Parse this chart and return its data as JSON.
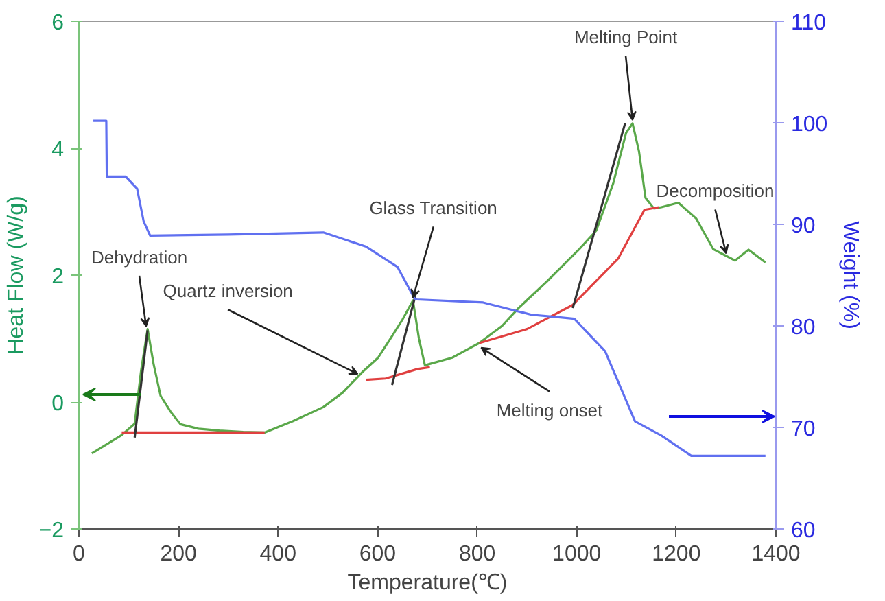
{
  "chart_data": {
    "type": "line",
    "xlabel": "Temperature(℃)",
    "ylabel": "Heat Flow (W/g)",
    "y2label": "Weight (%)",
    "xlim": [
      0,
      1400
    ],
    "xticks": [
      0,
      200,
      400,
      600,
      800,
      1000,
      1200,
      1400
    ],
    "ylim": [
      -2,
      6
    ],
    "yticks": [
      -2,
      0,
      2,
      4,
      6
    ],
    "y2lim": [
      60,
      110
    ],
    "y2ticks": [
      60,
      70,
      80,
      90,
      100,
      110
    ],
    "grid": false,
    "series": [
      {
        "color": "#5aa84a",
        "x": [
          26,
          86,
          112,
          125,
          138,
          150,
          164,
          184,
          204,
          240,
          282,
          330,
          373,
          430,
          491,
          530,
          569,
          601,
          629,
          650,
          671,
          683,
          695,
          750,
          804,
          850,
          883,
          940,
          1005,
          1039,
          1073,
          1099,
          1112,
          1125,
          1138,
          1155,
          1170,
          1204,
          1240,
          1274,
          1318,
          1345,
          1379
        ],
        "values": [
          -0.81,
          -0.52,
          -0.34,
          0.5,
          1.15,
          0.6,
          0.1,
          -0.15,
          -0.35,
          -0.42,
          -0.45,
          -0.47,
          -0.48,
          -0.3,
          -0.08,
          0.15,
          0.47,
          0.7,
          1.04,
          1.3,
          1.6,
          1.0,
          0.58,
          0.7,
          0.93,
          1.2,
          1.48,
          1.9,
          2.41,
          2.7,
          3.44,
          4.24,
          4.39,
          3.95,
          3.22,
          3.05,
          3.07,
          3.14,
          2.89,
          2.41,
          2.23,
          2.4,
          2.2
        ]
      },
      {
        "color": "#e04040",
        "x": [
          86,
          373
        ],
        "values": [
          -0.48,
          -0.48
        ]
      },
      {
        "color": "#e04040",
        "x": [
          576,
          616,
          650,
          680,
          705
        ],
        "values": [
          0.35,
          0.37,
          0.45,
          0.52,
          0.55
        ]
      },
      {
        "color": "#e04040",
        "x": [
          804,
          900,
          992,
          1083,
          1136,
          1165
        ],
        "values": [
          0.93,
          1.15,
          1.53,
          2.26,
          3.03,
          3.07
        ]
      },
      {
        "color": "#333333",
        "x": [
          112,
          138
        ],
        "values": [
          -0.56,
          1.13
        ]
      },
      {
        "color": "#333333",
        "x": [
          629,
          676
        ],
        "values": [
          0.27,
          1.68
        ]
      },
      {
        "color": "#333333",
        "x": [
          992,
          1097
        ],
        "values": [
          1.48,
          4.39
        ]
      },
      {
        "color": "#6070f0",
        "axis": "y2",
        "x": [
          29,
          55,
          56,
          94,
          117,
          130,
          143,
          300,
          491,
          577,
          640,
          674,
          679,
          812,
          909,
          953,
          995,
          1057,
          1117,
          1170,
          1230,
          1379
        ],
        "values": [
          100.2,
          100.2,
          94.7,
          94.7,
          93.5,
          90.3,
          88.9,
          89.0,
          89.2,
          87.8,
          85.8,
          82.7,
          82.6,
          82.3,
          81.1,
          80.9,
          80.7,
          77.5,
          70.6,
          69.2,
          67.2,
          67.2
        ]
      }
    ],
    "annotations": [
      {
        "text": "Dehydration",
        "x": 135,
        "y": 1.15
      },
      {
        "text": "Quartz inversion",
        "x": 560,
        "y": 0.4
      },
      {
        "text": "Glass Transition",
        "x": 671,
        "y": 1.6
      },
      {
        "text": "Melting onset",
        "x": 808,
        "y": 0.9
      },
      {
        "text": "Melting Point",
        "x": 1112,
        "y": 4.4
      },
      {
        "text": "Decomposition",
        "x": 1300,
        "y": 2.3
      }
    ]
  }
}
